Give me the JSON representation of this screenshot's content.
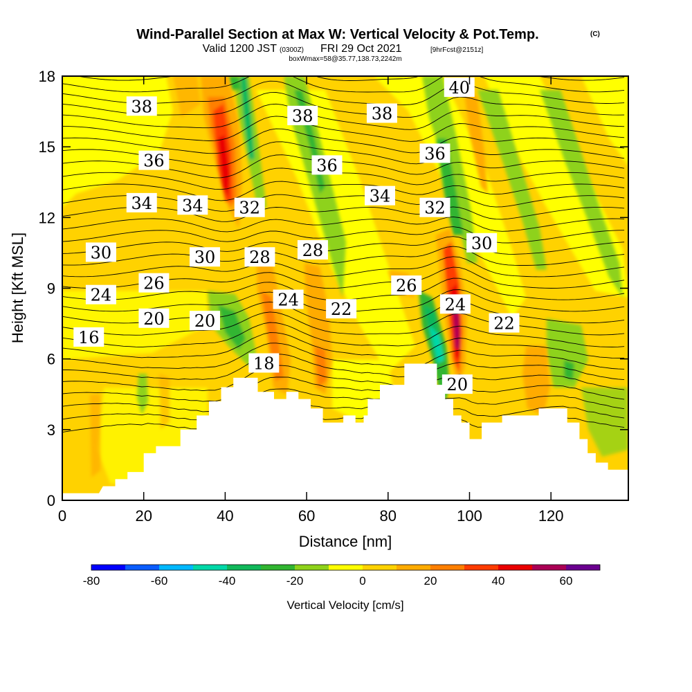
{
  "title": {
    "main": "Wind-Parallel Section at Max W: Vertical Velocity & Pot.Temp.",
    "copyright": "(C)",
    "valid_prefix": "Valid 1200 JST",
    "valid_utc": "(0300Z)",
    "valid_date": "FRI 29 Oct 2021",
    "forecast": "[9hrFcst@2151z]",
    "box_info": "boxWmax=58@35.77,138.73,2242m"
  },
  "chart_data": {
    "type": "heatmap",
    "xlabel": "Distance [nm]",
    "ylabel": "Height [Kft MSL]",
    "xlim": [
      0,
      139
    ],
    "ylim": [
      0,
      18
    ],
    "x_ticks": [
      0,
      20,
      40,
      60,
      80,
      100,
      120
    ],
    "y_ticks": [
      0,
      3,
      6,
      9,
      12,
      15,
      18
    ],
    "colorbar": {
      "label": "Vertical Velocity [cm/s]",
      "ticks": [
        -80,
        -60,
        -40,
        -20,
        0,
        20,
        40,
        60
      ],
      "range": [
        -80,
        70
      ],
      "colors": [
        "#0000ff",
        "#0a5cff",
        "#00b8ff",
        "#00d8a8",
        "#11b85a",
        "#31b531",
        "#8ed21a",
        "#ffff00",
        "#ffd200",
        "#ffab00",
        "#ff7f00",
        "#ff3c00",
        "#ea0000",
        "#aa0055",
        "#6a008f"
      ]
    },
    "terrain": [
      [
        0,
        0.3
      ],
      [
        9,
        0.3
      ],
      [
        10,
        0.6
      ],
      [
        13,
        0.6
      ],
      [
        13,
        0.9
      ],
      [
        16,
        0.9
      ],
      [
        16,
        1.2
      ],
      [
        20,
        1.2
      ],
      [
        20,
        2.0
      ],
      [
        23,
        2.0
      ],
      [
        23,
        2.3
      ],
      [
        29,
        2.3
      ],
      [
        29,
        3.0
      ],
      [
        33,
        3.0
      ],
      [
        33,
        3.6
      ],
      [
        36,
        3.6
      ],
      [
        36,
        4.2
      ],
      [
        39,
        4.2
      ],
      [
        39,
        4.8
      ],
      [
        42,
        4.8
      ],
      [
        42,
        5.2
      ],
      [
        48,
        5.2
      ],
      [
        48,
        4.6
      ],
      [
        52,
        4.6
      ],
      [
        52,
        4.3
      ],
      [
        55,
        4.3
      ],
      [
        55,
        4.6
      ],
      [
        58,
        4.6
      ],
      [
        58,
        4.3
      ],
      [
        61,
        4.3
      ],
      [
        61,
        3.9
      ],
      [
        64,
        3.9
      ],
      [
        64,
        3.3
      ],
      [
        69,
        3.3
      ],
      [
        69,
        3.6
      ],
      [
        72,
        3.6
      ],
      [
        72,
        3.3
      ],
      [
        74,
        3.3
      ],
      [
        74,
        3.6
      ],
      [
        75,
        3.6
      ],
      [
        75,
        4.3
      ],
      [
        78,
        4.3
      ],
      [
        78,
        4.9
      ],
      [
        84,
        4.9
      ],
      [
        84,
        5.8
      ],
      [
        92,
        5.8
      ],
      [
        92,
        4.9
      ],
      [
        94,
        4.9
      ],
      [
        94,
        4.3
      ],
      [
        96,
        4.3
      ],
      [
        96,
        3.6
      ],
      [
        98,
        3.6
      ],
      [
        98,
        3.3
      ],
      [
        100,
        3.3
      ],
      [
        100,
        2.6
      ],
      [
        103,
        2.6
      ],
      [
        103,
        3.3
      ],
      [
        108,
        3.3
      ],
      [
        108,
        3.6
      ],
      [
        117,
        3.6
      ],
      [
        117,
        3.9
      ],
      [
        124,
        3.9
      ],
      [
        124,
        3.3
      ],
      [
        127,
        3.3
      ],
      [
        127,
        2.6
      ],
      [
        129,
        2.6
      ],
      [
        129,
        2.0
      ],
      [
        131,
        2.0
      ],
      [
        131,
        1.6
      ],
      [
        134,
        1.6
      ],
      [
        134,
        1.3
      ],
      [
        139,
        1.3
      ],
      [
        139,
        0
      ]
    ],
    "theta_contour_labels": [
      {
        "text": "38",
        "x": 19.5,
        "y": 16.7
      },
      {
        "text": "38",
        "x": 59,
        "y": 16.3
      },
      {
        "text": "38",
        "x": 78.5,
        "y": 16.4
      },
      {
        "text": "40",
        "x": 97.5,
        "y": 17.5
      },
      {
        "text": "36",
        "x": 22.5,
        "y": 14.4
      },
      {
        "text": "36",
        "x": 65,
        "y": 14.2
      },
      {
        "text": "36",
        "x": 91.5,
        "y": 14.7
      },
      {
        "text": "34",
        "x": 19.5,
        "y": 12.6
      },
      {
        "text": "34",
        "x": 32,
        "y": 12.5
      },
      {
        "text": "34",
        "x": 78,
        "y": 12.9
      },
      {
        "text": "32",
        "x": 46,
        "y": 12.4
      },
      {
        "text": "32",
        "x": 91.5,
        "y": 12.4
      },
      {
        "text": "30",
        "x": 9.5,
        "y": 10.5
      },
      {
        "text": "30",
        "x": 35,
        "y": 10.3
      },
      {
        "text": "30",
        "x": 103,
        "y": 10.9
      },
      {
        "text": "28",
        "x": 48.5,
        "y": 10.3
      },
      {
        "text": "28",
        "x": 61.5,
        "y": 10.6
      },
      {
        "text": "26",
        "x": 22.5,
        "y": 9.2
      },
      {
        "text": "26",
        "x": 84.5,
        "y": 9.1
      },
      {
        "text": "24",
        "x": 9.5,
        "y": 8.7
      },
      {
        "text": "24",
        "x": 55.5,
        "y": 8.5
      },
      {
        "text": "24",
        "x": 96.5,
        "y": 8.3
      },
      {
        "text": "22",
        "x": 68.5,
        "y": 8.1
      },
      {
        "text": "22",
        "x": 108.5,
        "y": 7.5
      },
      {
        "text": "20",
        "x": 22.5,
        "y": 7.7
      },
      {
        "text": "20",
        "x": 35,
        "y": 7.6
      },
      {
        "text": "20",
        "x": 97,
        "y": 4.9
      },
      {
        "text": "18",
        "x": 49.5,
        "y": 5.8
      },
      {
        "text": "16",
        "x": 6.5,
        "y": 6.9
      }
    ]
  }
}
